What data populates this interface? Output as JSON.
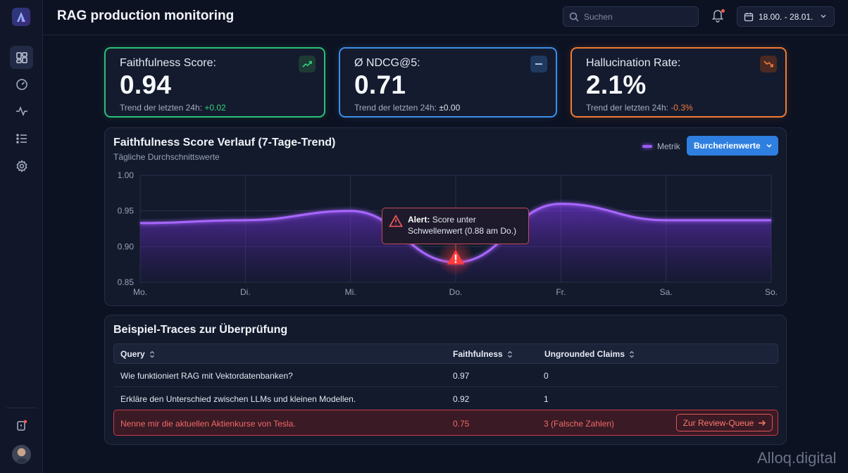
{
  "header": {
    "title": "RAG production monitoring",
    "search_placeholder": "Suchen",
    "date_range": "18.00. - 28.01."
  },
  "sidebar": {
    "items": [
      "dashboard-icon",
      "gauge-icon",
      "activity-icon",
      "list-icon",
      "settings-icon"
    ],
    "footer": [
      "notification-icon",
      "avatar"
    ]
  },
  "kpis": [
    {
      "label": "Faithfulness Score:",
      "value": "0.94",
      "trend_label": "Trend der letzten 24h:",
      "trend_value": "+0.02",
      "icon": "trend-up-icon",
      "color": "#2bbf78"
    },
    {
      "label": "Ø NDCG@5:",
      "value": "0.71",
      "trend_label": "Trend der letzten 24h:",
      "trend_value": "±0.00",
      "icon": "minus-icon",
      "color": "#3b8fe8"
    },
    {
      "label": "Hallucination Rate:",
      "value": "2.1%",
      "trend_label": "Trend der letzten 24h:",
      "trend_value": "-0.3%",
      "icon": "trend-down-icon",
      "color": "#f07a34"
    }
  ],
  "chart_panel": {
    "title": "Faithfulness Score Verlauf (7-Tage-Trend)",
    "subtitle": "Tägliche Durchschnittswerte",
    "legend_label": "Metrik",
    "dropdown_label": "Burcherienwerte",
    "tooltip_bold": "Alert:",
    "tooltip_text": "Score unter Schwellenwert (0.88 am Do.)"
  },
  "chart_data": {
    "type": "line",
    "x": [
      "Mo.",
      "Di.",
      "Mi.",
      "Do.",
      "Fr.",
      "Sa.",
      "So."
    ],
    "y_ticks": [
      "1.00",
      "0.95",
      "0.90",
      "0.85"
    ],
    "ylim": [
      0.85,
      1.0
    ],
    "series": [
      {
        "name": "Metrik",
        "values": [
          0.933,
          0.937,
          0.95,
          0.878,
          0.96,
          0.937,
          0.937
        ]
      }
    ],
    "alert_point": {
      "x": "Do.",
      "y": 0.88
    },
    "grid": true,
    "color": "#9c5cff"
  },
  "table_panel": {
    "title": "Beispiel-Traces zur Überprüfung",
    "columns": [
      "Query",
      "Faithfulness",
      "Ungrounded Claims"
    ],
    "rows": [
      {
        "query": "Wie funktioniert RAG mit Vektordatenbanken?",
        "faithfulness": "0.97",
        "claims": "0"
      },
      {
        "query": "Erkläre den Unterschied zwischen LLMs und kleinen Modellen.",
        "faithfulness": "0.92",
        "claims": "1"
      },
      {
        "query": "Nenne mir die aktuellen Aktienkurse von Tesla.",
        "faithfulness": "0.75",
        "claims": "3 (Falsche Zahlen)",
        "action": "Zur Review-Queue"
      }
    ]
  },
  "watermark": "Alloq.digital"
}
